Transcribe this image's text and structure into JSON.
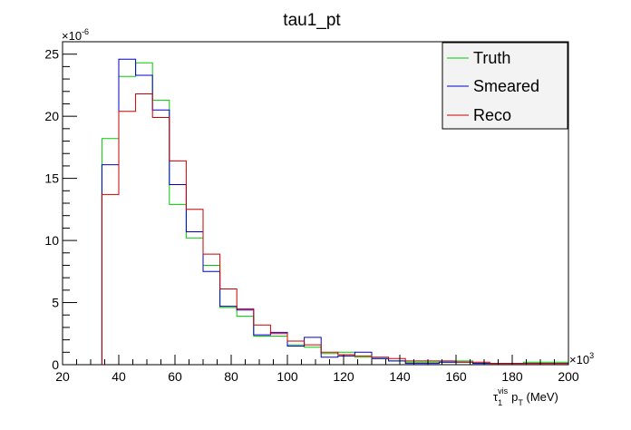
{
  "chart_data": {
    "type": "histogram",
    "title": "tau1_pt",
    "xlabel": {
      "base": "τ",
      "sub": "1",
      "sup": "vis",
      "rest_p": "p",
      "rest_sub": "T",
      "unit": " (MeV)"
    },
    "xlim": [
      20,
      200
    ],
    "ylim": [
      0,
      26
    ],
    "x_multiplier": "×10",
    "x_multiplier_exp": "3",
    "y_multiplier": "×10",
    "y_multiplier_exp": "-6",
    "x_ticks": [
      20,
      40,
      60,
      80,
      100,
      120,
      140,
      160,
      180,
      200
    ],
    "y_ticks": [
      0,
      5,
      10,
      15,
      20,
      25
    ],
    "bin_edges": [
      34,
      40,
      46,
      52,
      58,
      64,
      70,
      76,
      82,
      88,
      94,
      100,
      106,
      112,
      118,
      124,
      130,
      136,
      142,
      148,
      154,
      160,
      166,
      172,
      178,
      184,
      190,
      196,
      200
    ],
    "series": [
      {
        "name": "Truth",
        "color": "#00cc00",
        "values": [
          18.2,
          23.2,
          24.3,
          21.3,
          12.9,
          10.2,
          8.0,
          4.6,
          3.9,
          2.3,
          2.3,
          1.6,
          1.4,
          0.9,
          1.0,
          0.6,
          0.5,
          0.3,
          0.2,
          0.2,
          0.2,
          0.3,
          0.1,
          0.1,
          0.1,
          0.2,
          0.2,
          0.2
        ]
      },
      {
        "name": "Smeared",
        "color": "#0000cc",
        "values": [
          16.1,
          24.6,
          23.3,
          20.5,
          14.5,
          10.7,
          7.5,
          4.7,
          4.4,
          2.4,
          2.6,
          1.5,
          2.2,
          0.6,
          0.7,
          1.0,
          0.5,
          0.3,
          0.1,
          0.1,
          0.2,
          0.2,
          0.1,
          0.1,
          0.1,
          0.1,
          0.1,
          0.1
        ]
      },
      {
        "name": "Reco",
        "color": "#cc0000",
        "values": [
          13.7,
          20.4,
          21.8,
          19.9,
          16.4,
          12.5,
          8.9,
          6.1,
          4.5,
          3.2,
          2.5,
          1.9,
          1.6,
          1.0,
          0.8,
          0.7,
          0.6,
          0.5,
          0.3,
          0.3,
          0.3,
          0.2,
          0.2,
          0.1,
          0.1,
          0.1,
          0.1,
          0.1
        ]
      }
    ],
    "legend_position": "top-right",
    "grid": false
  }
}
